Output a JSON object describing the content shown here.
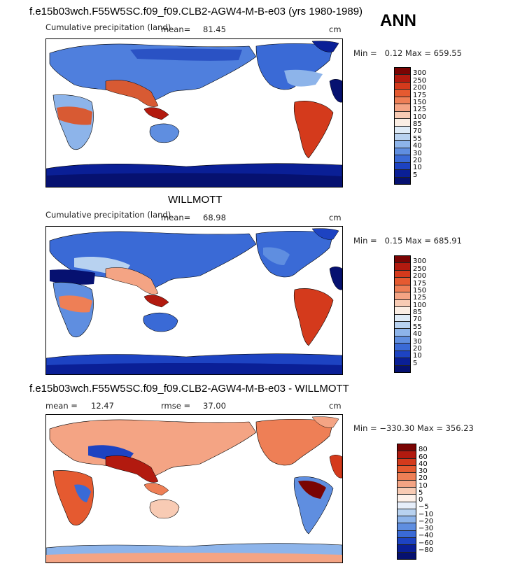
{
  "header": {
    "annual_tag": "ANN"
  },
  "chart_data": [
    {
      "type": "heatmap",
      "title": "f.e15b03wch.F55W5SC.f09_f09.CLB2-AGW4-M-B-e03 (yrs 1980-1989)",
      "subtitle": "Cumulative precipitation (land)",
      "mean_label": "mean=",
      "mean_value": "81.45",
      "units": "cm",
      "stats_text": "Min =   0.12 Max = 659.55",
      "min": 0.12,
      "max": 659.55,
      "colorbar": {
        "levels": [
          "300",
          "250",
          "200",
          "175",
          "150",
          "125",
          "100",
          "85",
          "70",
          "55",
          "40",
          "30",
          "20",
          "10",
          "5"
        ],
        "colors": [
          "#7a0403",
          "#b21a0f",
          "#d43a1c",
          "#e55a30",
          "#ee7f56",
          "#f4a484",
          "#f8cbb4",
          "#fbeee4",
          "#deebf7",
          "#b8d2f0",
          "#8db4ea",
          "#5f8ee0",
          "#3a6ad6",
          "#1d43c2",
          "#0a1f96",
          "#061170"
        ]
      }
    },
    {
      "type": "heatmap",
      "title": "WILLMOTT",
      "subtitle": "Cumulative precipitation (land)",
      "mean_label": "mean=",
      "mean_value": "68.98",
      "units": "cm",
      "stats_text": "Min =   0.15 Max = 685.91",
      "min": 0.15,
      "max": 685.91,
      "colorbar": {
        "levels": [
          "300",
          "250",
          "200",
          "175",
          "150",
          "125",
          "100",
          "85",
          "70",
          "55",
          "40",
          "30",
          "20",
          "10",
          "5"
        ],
        "colors": [
          "#7a0403",
          "#b21a0f",
          "#d43a1c",
          "#e55a30",
          "#ee7f56",
          "#f4a484",
          "#f8cbb4",
          "#fbeee4",
          "#deebf7",
          "#b8d2f0",
          "#8db4ea",
          "#5f8ee0",
          "#3a6ad6",
          "#1d43c2",
          "#0a1f96",
          "#061170"
        ]
      }
    },
    {
      "type": "heatmap",
      "title": "f.e15b03wch.F55W5SC.f09_f09.CLB2-AGW4-M-B-e03 - WILLMOTT",
      "mean_label": "mean =",
      "mean_value": "12.47",
      "rmse_label": "rmse =",
      "rmse_value": "37.00",
      "units": "cm",
      "stats_text": "Min = −330.30 Max = 356.23",
      "min": -330.3,
      "max": 356.23,
      "colorbar": {
        "levels": [
          "80",
          "60",
          "40",
          "30",
          "20",
          "10",
          "5",
          "0",
          "−5",
          "−10",
          "−20",
          "−30",
          "−40",
          "−60",
          "−80"
        ],
        "colors": [
          "#7a0403",
          "#b21a0f",
          "#d43a1c",
          "#e55a30",
          "#ee7f56",
          "#f4a484",
          "#f8cbb4",
          "#fdf1ea",
          "#e6eefa",
          "#b8d2f0",
          "#8db4ea",
          "#5f8ee0",
          "#3a6ad6",
          "#1d43c2",
          "#0a1f96",
          "#061170"
        ]
      }
    }
  ]
}
